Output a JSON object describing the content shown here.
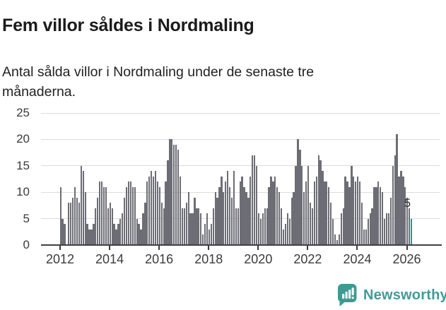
{
  "header": {
    "title": "Fem villor såldes i Nordmaling",
    "subtitle": "Antal sålda villor i Nordmaling under de senaste tre månaderna."
  },
  "chart_data": {
    "type": "bar",
    "frequency": "monthly-rolling-3-month-sum",
    "x_start": "2012-01",
    "x_end": "2026-03",
    "values": [
      11,
      5,
      4,
      0,
      8,
      8,
      9,
      11,
      9,
      8,
      15,
      14,
      10,
      4,
      3,
      3,
      4,
      7,
      9,
      12,
      12,
      11,
      11,
      7,
      8,
      7,
      4,
      3,
      4,
      5,
      6,
      9,
      11,
      12,
      12,
      11,
      11,
      5,
      4,
      3,
      6,
      8,
      12,
      13,
      14,
      13,
      14,
      12,
      11,
      8,
      7,
      12,
      16,
      20,
      20,
      19,
      19,
      18,
      13,
      7,
      7,
      8,
      10,
      6,
      6,
      9,
      7,
      7,
      6,
      2,
      4,
      6,
      3,
      4,
      7,
      10,
      9,
      11,
      13,
      10,
      12,
      14,
      11,
      9,
      14,
      7,
      7,
      12,
      13,
      11,
      10,
      9,
      13,
      17,
      17,
      15,
      6,
      5,
      6,
      7,
      7,
      11,
      13,
      12,
      13,
      11,
      10,
      7,
      3,
      4,
      6,
      5,
      9,
      10,
      15,
      20,
      18,
      15,
      10,
      12,
      15,
      8,
      7,
      12,
      13,
      17,
      16,
      14,
      12,
      12,
      11,
      8,
      5,
      2,
      1,
      2,
      6,
      7,
      13,
      12,
      11,
      15,
      13,
      12,
      13,
      12,
      8,
      3,
      3,
      5,
      6,
      7,
      11,
      11,
      12,
      11,
      10,
      5,
      6,
      6,
      9,
      15,
      17,
      21,
      13,
      14,
      13,
      11,
      9,
      7,
      5
    ],
    "highlighted_last_value": 5,
    "value_label": "5",
    "y_ticks": [
      "0",
      "5",
      "10",
      "15",
      "20",
      "25"
    ],
    "x_tick_labels": [
      "2012",
      "2014",
      "2016",
      "2018",
      "2020",
      "2022",
      "2024",
      "2026"
    ],
    "ylim": [
      0,
      25
    ],
    "grid": "horizontal",
    "legend": "none",
    "colors": {
      "bar": "#6d6d76",
      "highlight": "#0aa2a0",
      "gridline": "#dcdcdc",
      "axis": "#414141",
      "tick_text": "#3b3b3b",
      "brand": "#3f9c95"
    }
  },
  "footer": {
    "brand": "Newsworthy"
  }
}
